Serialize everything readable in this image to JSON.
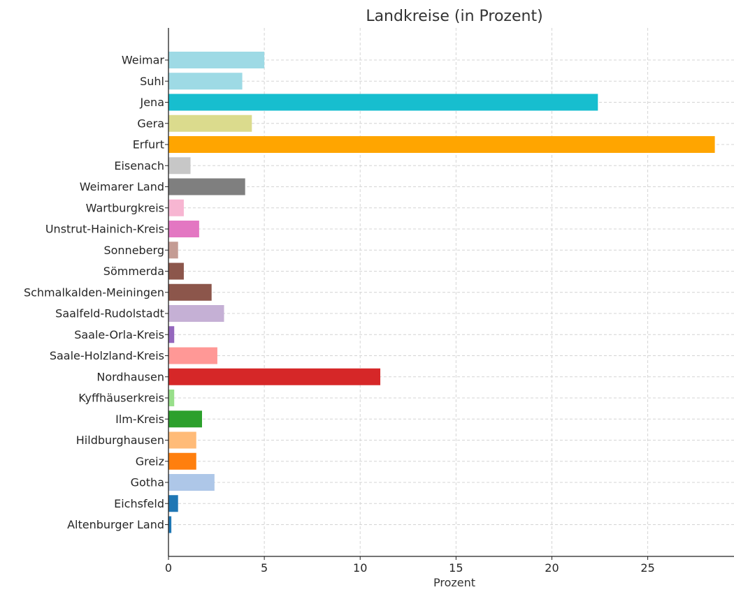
{
  "chart_data": {
    "type": "bar",
    "orientation": "horizontal",
    "title": "Landkreise (in Prozent)",
    "xlabel": "Prozent",
    "ylabel": "",
    "xlim": [
      0,
      29.5
    ],
    "xticks": [
      0,
      5,
      10,
      15,
      20,
      25
    ],
    "grid": true,
    "categories": [
      "Weimar",
      "Suhl",
      "Jena",
      "Gera",
      "Erfurt",
      "Eisenach",
      "Weimarer Land",
      "Wartburgkreis",
      "Unstrut-Hainich-Kreis",
      "Sonneberg",
      "Sömmerda",
      "Schmalkalden-Meiningen",
      "Saalfeld-Rudolstadt",
      "Saale-Orla-Kreis",
      "Saale-Holzland-Kreis",
      "Nordhausen",
      "Kyffhäuserkreis",
      "Ilm-Kreis",
      "Hildburghausen",
      "Greiz",
      "Gotha",
      "Eichsfeld",
      "Altenburger Land"
    ],
    "values": [
      5.0,
      3.85,
      22.4,
      4.35,
      28.5,
      1.15,
      4.0,
      0.8,
      1.6,
      0.5,
      0.8,
      2.25,
      2.9,
      0.3,
      2.55,
      11.05,
      0.3,
      1.75,
      1.45,
      1.45,
      2.4,
      0.5,
      0.15
    ],
    "colors": [
      "#9edae5",
      "#9edae5",
      "#17becf",
      "#dbdb8d",
      "#ffa500",
      "#c7c7c7",
      "#7f7f7f",
      "#f7b6d2",
      "#e377c2",
      "#c49c94",
      "#8c564b",
      "#8c564b",
      "#c5b0d5",
      "#9467bd",
      "#ff9896",
      "#d62728",
      "#98df8a",
      "#2ca02c",
      "#ffbb78",
      "#ff7f0e",
      "#aec7e8",
      "#1f77b4",
      "#1f77b4"
    ]
  }
}
